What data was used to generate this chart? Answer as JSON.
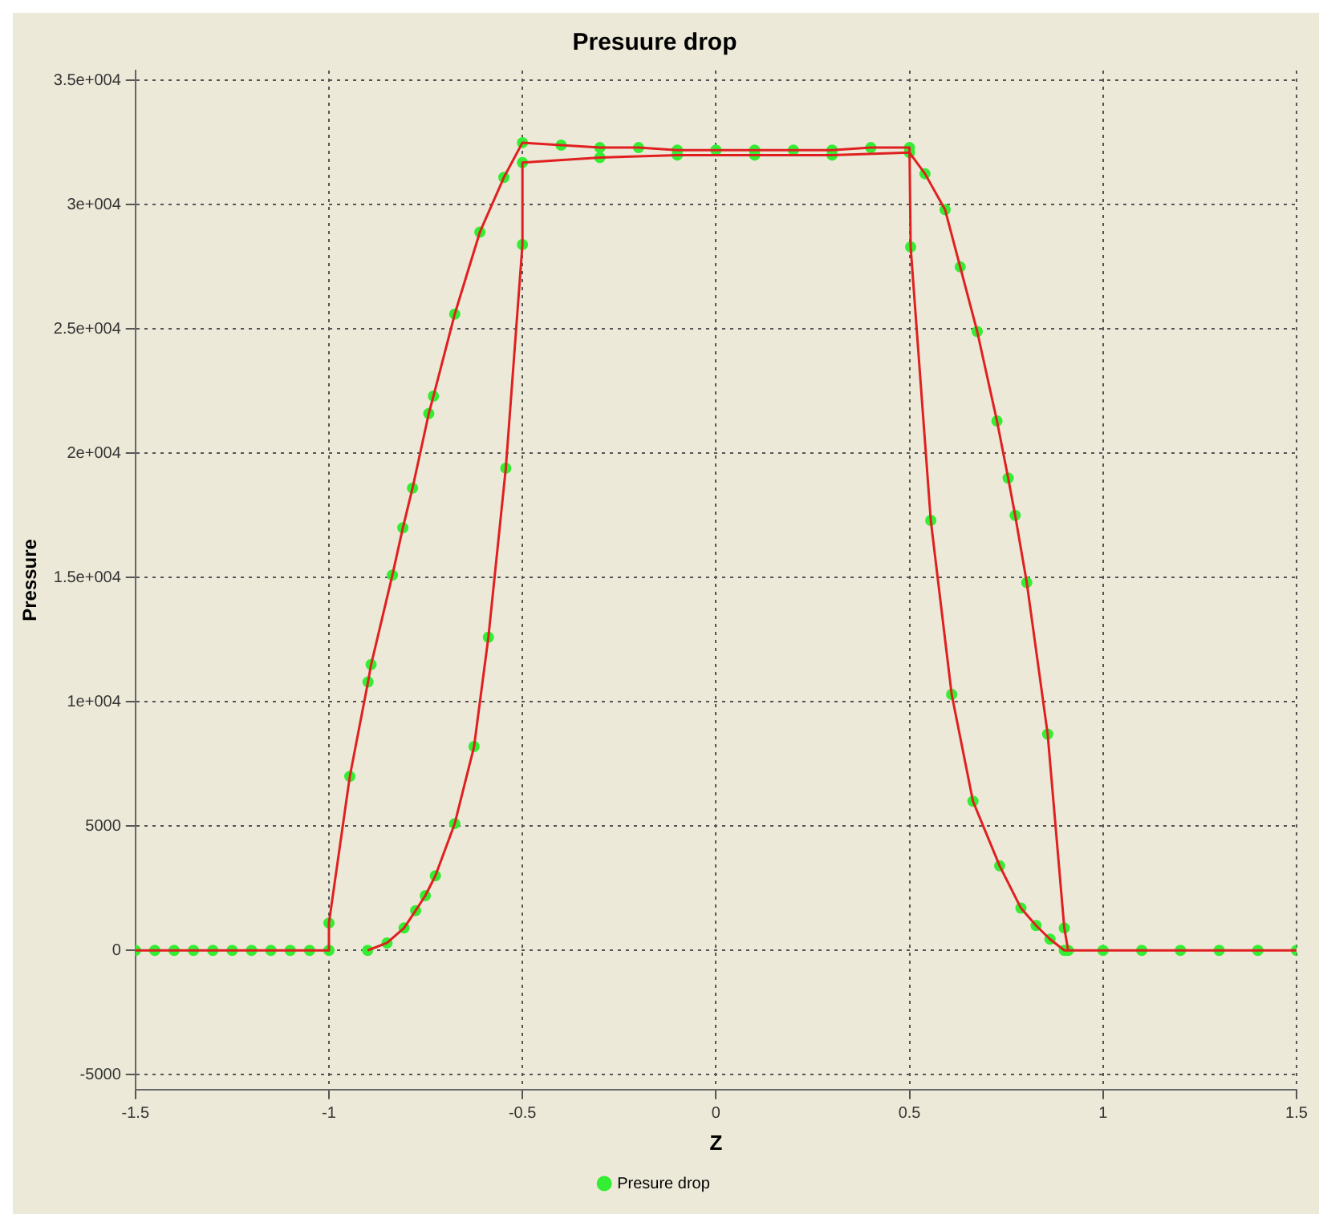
{
  "chart_data": {
    "type": "line",
    "title": "Presuure drop",
    "xlabel": "Z",
    "ylabel": "Pressure",
    "series": [
      {
        "color": "#e02020",
        "marker": "none",
        "x": [
          -1.5,
          -1.45,
          -1.4,
          -1.35,
          -1.3,
          -1.25,
          -1.2,
          -1.15,
          -1.1,
          -1.05,
          -1.0,
          -1.0,
          -0.946,
          -0.899,
          -0.891,
          -0.836,
          -0.809,
          -0.784,
          -0.742,
          -0.73,
          -0.675,
          -0.61,
          -0.548,
          -0.5,
          -0.4,
          -0.3,
          -0.2,
          -0.1,
          0,
          0.1,
          0.2,
          0.3,
          0.4,
          0.5,
          0.503,
          0.555,
          0.609,
          0.664,
          0.733,
          0.788,
          0.827,
          0.863,
          0.9,
          1.0,
          1.1,
          1.2,
          1.3,
          1.4,
          1.5
        ],
        "values": [
          0,
          0,
          0,
          0,
          0,
          0,
          0,
          0,
          0,
          0,
          0,
          1100,
          7000,
          10800,
          11500,
          15100,
          17000,
          18600,
          21600,
          22300,
          25600,
          28900,
          31100,
          32500,
          32400,
          32300,
          32300,
          32200,
          32200,
          32200,
          32200,
          32200,
          32300,
          32300,
          28300,
          17300,
          10300,
          6000,
          3400,
          1700,
          1000,
          450,
          0,
          0,
          0,
          0,
          0,
          0,
          0
        ]
      },
      {
        "color": "#e02020",
        "marker": "none",
        "x": [
          -0.9,
          -0.85,
          -0.806,
          -0.776,
          -0.751,
          -0.725,
          -0.675,
          -0.625,
          -0.588,
          -0.543,
          -0.5,
          -0.5,
          -0.3,
          -0.1,
          0.1,
          0.3,
          0.5,
          0.54,
          0.592,
          0.631,
          0.675,
          0.726,
          0.755,
          0.773,
          0.803,
          0.857,
          0.9,
          0.91
        ],
        "values": [
          0,
          300,
          900,
          1600,
          2200,
          3000,
          5100,
          8200,
          12600,
          19400,
          28400,
          31700,
          31900,
          32000,
          32000,
          32000,
          32100,
          31250,
          29800,
          27500,
          24900,
          21300,
          19000,
          17500,
          14800,
          8700,
          900,
          0
        ]
      },
      {
        "type": "scatter",
        "name": "Presure drop",
        "color": "#33ee33",
        "marker": "circle",
        "x": [
          -1.5,
          -1.45,
          -1.4,
          -1.35,
          -1.3,
          -1.25,
          -1.2,
          -1.15,
          -1.1,
          -1.05,
          -1.0,
          -1.0,
          -0.946,
          -0.899,
          -0.891,
          -0.836,
          -0.809,
          -0.784,
          -0.742,
          -0.73,
          -0.675,
          -0.61,
          -0.548,
          -0.5,
          -0.4,
          -0.3,
          -0.2,
          -0.1,
          0,
          0.1,
          0.2,
          0.3,
          0.4,
          0.5,
          0.503,
          0.555,
          0.609,
          0.664,
          0.733,
          0.788,
          0.827,
          0.863,
          0.9,
          1.0,
          1.1,
          1.2,
          1.3,
          1.4,
          1.5,
          -0.9,
          -0.85,
          -0.806,
          -0.776,
          -0.751,
          -0.725,
          -0.675,
          -0.625,
          -0.588,
          -0.543,
          -0.5,
          -0.5,
          -0.3,
          -0.1,
          0.1,
          0.3,
          0.5,
          0.54,
          0.592,
          0.631,
          0.675,
          0.726,
          0.755,
          0.773,
          0.803,
          0.857,
          0.9,
          0.91
        ],
        "values": [
          0,
          0,
          0,
          0,
          0,
          0,
          0,
          0,
          0,
          0,
          0,
          1100,
          7000,
          10800,
          11500,
          15100,
          17000,
          18600,
          21600,
          22300,
          25600,
          28900,
          31100,
          32500,
          32400,
          32300,
          32300,
          32200,
          32200,
          32200,
          32200,
          32200,
          32300,
          32300,
          28300,
          17300,
          10300,
          6000,
          3400,
          1700,
          1000,
          450,
          0,
          0,
          0,
          0,
          0,
          0,
          0,
          0,
          300,
          900,
          1600,
          2200,
          3000,
          5100,
          8200,
          12600,
          19400,
          28400,
          31700,
          31900,
          32000,
          32000,
          32000,
          32100,
          31250,
          29800,
          27500,
          24900,
          21300,
          19000,
          17500,
          14800,
          8700,
          900,
          0
        ]
      }
    ],
    "xlim": [
      -1.5,
      1.5
    ],
    "xticks": [
      -1.5,
      -1,
      -0.5,
      0,
      0.5,
      1,
      1.5
    ],
    "ylim": [
      -5600,
      35400
    ],
    "yticks": [
      {
        "value": -5000,
        "label": "-5000"
      },
      {
        "value": 0,
        "label": "0"
      },
      {
        "value": 5000,
        "label": "5000"
      },
      {
        "value": 10000,
        "label": "1e+004"
      },
      {
        "value": 15000,
        "label": "1.5e+004"
      },
      {
        "value": 20000,
        "label": "2e+004"
      },
      {
        "value": 25000,
        "label": "2.5e+004"
      },
      {
        "value": 30000,
        "label": "3e+004"
      },
      {
        "value": 35000,
        "label": "3.5e+004"
      }
    ],
    "grid": true,
    "legend": "bottom",
    "line_style": "solid"
  }
}
